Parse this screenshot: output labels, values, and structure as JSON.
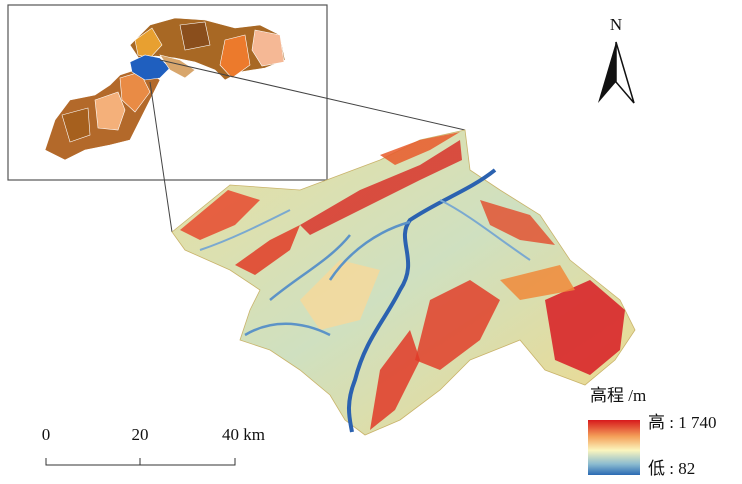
{
  "north_arrow": {
    "label": "N"
  },
  "scale_bar": {
    "ticks": [
      "0",
      "20",
      "40 km"
    ]
  },
  "legend": {
    "title": "高程 /m",
    "high": "高 : 1 740",
    "low": "低 : 82"
  }
}
